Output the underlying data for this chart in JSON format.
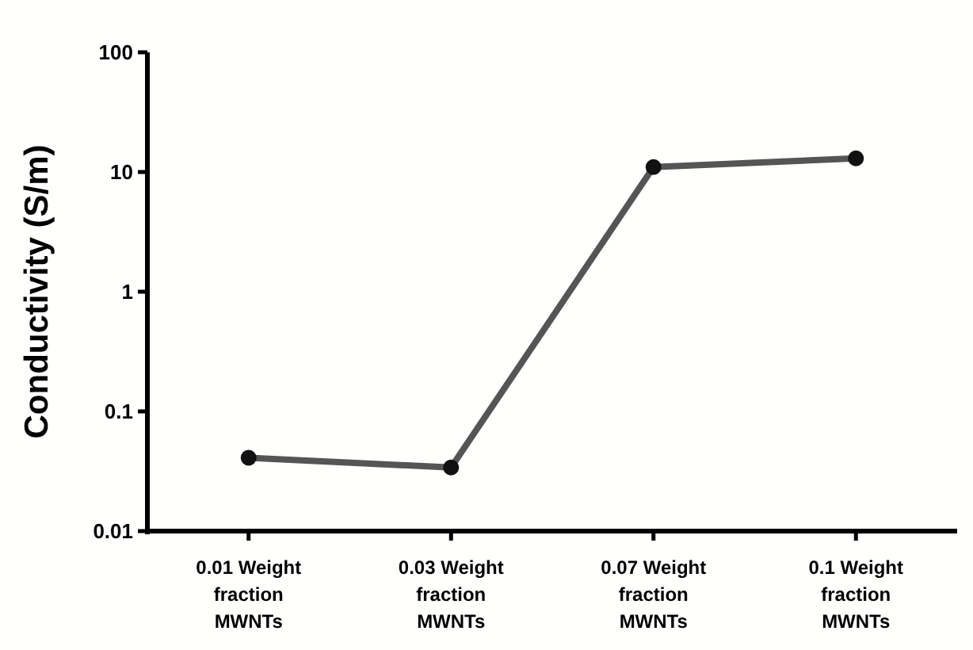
{
  "chart_data": {
    "type": "line",
    "ylabel": "Conductivity (S/m)",
    "log": "y",
    "categories": [
      "0.01 Weight fraction MWNTs",
      "0.03 Weight fraction MWNTs",
      "0.07 Weight fraction MWNTs",
      "0.1 Weight fraction MWNTs"
    ],
    "series": [
      {
        "color": "#555555",
        "values": [
          0.041,
          0.034,
          11,
          13
        ]
      }
    ],
    "ylim": [
      0.01,
      100
    ],
    "yticks": [
      0.01,
      0.1,
      1,
      10,
      100
    ],
    "marker": "circle",
    "grid": false
  }
}
